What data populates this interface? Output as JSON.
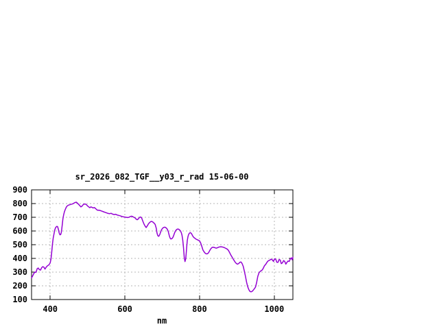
{
  "window": {
    "background": "#ffffff"
  },
  "chart_data": {
    "type": "line",
    "title": "sr_2026_082_TGF__y03_r_rad 15-06-00",
    "xlabel": "nm",
    "ylabel": "",
    "xlim": [
      350,
      1050
    ],
    "ylim": [
      100,
      900
    ],
    "x_ticks": [
      400,
      600,
      800,
      1000
    ],
    "y_ticks": [
      100,
      200,
      300,
      400,
      500,
      600,
      700,
      800,
      900
    ],
    "grid": true,
    "legend_position": "none",
    "colors": {
      "line": "#9400d3",
      "grid": "#b5b5b5",
      "frame": "#000000",
      "text": "#000000",
      "background": "#ffffff"
    },
    "series": [
      {
        "points": [
          [
            350,
            258
          ],
          [
            353,
            272
          ],
          [
            356,
            290
          ],
          [
            359,
            300
          ],
          [
            362,
            298
          ],
          [
            365,
            325
          ],
          [
            368,
            330
          ],
          [
            371,
            318
          ],
          [
            374,
            315
          ],
          [
            377,
            332
          ],
          [
            380,
            340
          ],
          [
            383,
            336
          ],
          [
            386,
            322
          ],
          [
            389,
            335
          ],
          [
            392,
            345
          ],
          [
            395,
            350
          ],
          [
            398,
            358
          ],
          [
            400,
            368
          ],
          [
            402,
            395
          ],
          [
            404,
            445
          ],
          [
            406,
            505
          ],
          [
            408,
            550
          ],
          [
            410,
            578
          ],
          [
            412,
            605
          ],
          [
            414,
            622
          ],
          [
            416,
            630
          ],
          [
            418,
            634
          ],
          [
            420,
            630
          ],
          [
            422,
            610
          ],
          [
            424,
            585
          ],
          [
            426,
            572
          ],
          [
            428,
            574
          ],
          [
            430,
            592
          ],
          [
            432,
            638
          ],
          [
            434,
            688
          ],
          [
            436,
            718
          ],
          [
            438,
            740
          ],
          [
            440,
            755
          ],
          [
            442,
            768
          ],
          [
            444,
            778
          ],
          [
            446,
            784
          ],
          [
            449,
            789
          ],
          [
            452,
            791
          ],
          [
            455,
            794
          ],
          [
            458,
            796
          ],
          [
            461,
            799
          ],
          [
            464,
            804
          ],
          [
            467,
            808
          ],
          [
            470,
            810
          ],
          [
            473,
            803
          ],
          [
            476,
            794
          ],
          [
            479,
            786
          ],
          [
            482,
            776
          ],
          [
            485,
            781
          ],
          [
            488,
            791
          ],
          [
            491,
            796
          ],
          [
            494,
            797
          ],
          [
            497,
            792
          ],
          [
            500,
            783
          ],
          [
            503,
            776
          ],
          [
            506,
            770
          ],
          [
            509,
            776
          ],
          [
            512,
            772
          ],
          [
            515,
            768
          ],
          [
            518,
            771
          ],
          [
            521,
            765
          ],
          [
            524,
            757
          ],
          [
            527,
            751
          ],
          [
            530,
            752
          ],
          [
            533,
            750
          ],
          [
            536,
            747
          ],
          [
            539,
            744
          ],
          [
            543,
            740
          ],
          [
            547,
            736
          ],
          [
            551,
            732
          ],
          [
            555,
            728
          ],
          [
            559,
            726
          ],
          [
            563,
            729
          ],
          [
            567,
            723
          ],
          [
            571,
            720
          ],
          [
            575,
            722
          ],
          [
            579,
            717
          ],
          [
            583,
            714
          ],
          [
            587,
            711
          ],
          [
            591,
            707
          ],
          [
            595,
            704
          ],
          [
            599,
            702
          ],
          [
            603,
            700
          ],
          [
            607,
            698
          ],
          [
            611,
            700
          ],
          [
            615,
            706
          ],
          [
            618,
            708
          ],
          [
            621,
            705
          ],
          [
            624,
            700
          ],
          [
            627,
            696
          ],
          [
            630,
            687
          ],
          [
            633,
            682
          ],
          [
            636,
            688
          ],
          [
            639,
            699
          ],
          [
            642,
            702
          ],
          [
            645,
            694
          ],
          [
            648,
            672
          ],
          [
            651,
            652
          ],
          [
            654,
            636
          ],
          [
            657,
            625
          ],
          [
            660,
            637
          ],
          [
            663,
            652
          ],
          [
            666,
            661
          ],
          [
            669,
            668
          ],
          [
            672,
            670
          ],
          [
            675,
            665
          ],
          [
            678,
            658
          ],
          [
            681,
            648
          ],
          [
            684,
            620
          ],
          [
            686,
            585
          ],
          [
            688,
            567
          ],
          [
            690,
            561
          ],
          [
            692,
            566
          ],
          [
            694,
            578
          ],
          [
            696,
            594
          ],
          [
            698,
            608
          ],
          [
            701,
            620
          ],
          [
            704,
            626
          ],
          [
            707,
            628
          ],
          [
            710,
            624
          ],
          [
            713,
            615
          ],
          [
            716,
            598
          ],
          [
            719,
            566
          ],
          [
            721,
            549
          ],
          [
            723,
            542
          ],
          [
            725,
            543
          ],
          [
            727,
            547
          ],
          [
            729,
            556
          ],
          [
            731,
            570
          ],
          [
            733,
            586
          ],
          [
            735,
            598
          ],
          [
            737,
            606
          ],
          [
            739,
            611
          ],
          [
            741,
            614
          ],
          [
            743,
            614
          ],
          [
            745,
            611
          ],
          [
            747,
            606
          ],
          [
            749,
            600
          ],
          [
            751,
            588
          ],
          [
            753,
            570
          ],
          [
            755,
            535
          ],
          [
            757,
            480
          ],
          [
            759,
            408
          ],
          [
            761,
            377
          ],
          [
            763,
            398
          ],
          [
            765,
            465
          ],
          [
            767,
            530
          ],
          [
            769,
            560
          ],
          [
            771,
            576
          ],
          [
            773,
            584
          ],
          [
            775,
            588
          ],
          [
            777,
            585
          ],
          [
            779,
            578
          ],
          [
            781,
            567
          ],
          [
            783,
            558
          ],
          [
            785,
            552
          ],
          [
            787,
            548
          ],
          [
            789,
            544
          ],
          [
            791,
            540
          ],
          [
            794,
            536
          ],
          [
            797,
            532
          ],
          [
            800,
            528
          ],
          [
            803,
            512
          ],
          [
            806,
            488
          ],
          [
            809,
            462
          ],
          [
            812,
            448
          ],
          [
            815,
            438
          ],
          [
            818,
            433
          ],
          [
            821,
            434
          ],
          [
            824,
            441
          ],
          [
            827,
            456
          ],
          [
            830,
            470
          ],
          [
            833,
            479
          ],
          [
            836,
            482
          ],
          [
            839,
            480
          ],
          [
            842,
            477
          ],
          [
            845,
            475
          ],
          [
            848,
            478
          ],
          [
            851,
            482
          ],
          [
            854,
            484
          ],
          [
            857,
            485
          ],
          [
            860,
            484
          ],
          [
            863,
            482
          ],
          [
            866,
            479
          ],
          [
            869,
            475
          ],
          [
            872,
            471
          ],
          [
            875,
            466
          ],
          [
            878,
            455
          ],
          [
            881,
            440
          ],
          [
            884,
            424
          ],
          [
            887,
            410
          ],
          [
            890,
            396
          ],
          [
            893,
            383
          ],
          [
            896,
            370
          ],
          [
            899,
            362
          ],
          [
            902,
            358
          ],
          [
            905,
            363
          ],
          [
            908,
            372
          ],
          [
            911,
            374
          ],
          [
            914,
            362
          ],
          [
            917,
            342
          ],
          [
            920,
            308
          ],
          [
            923,
            268
          ],
          [
            926,
            226
          ],
          [
            929,
            194
          ],
          [
            932,
            172
          ],
          [
            935,
            159
          ],
          [
            938,
            156
          ],
          [
            941,
            160
          ],
          [
            944,
            169
          ],
          [
            947,
            179
          ],
          [
            950,
            192
          ],
          [
            953,
            226
          ],
          [
            956,
            268
          ],
          [
            959,
            294
          ],
          [
            962,
            304
          ],
          [
            965,
            310
          ],
          [
            968,
            316
          ],
          [
            971,
            330
          ],
          [
            974,
            347
          ],
          [
            977,
            356
          ],
          [
            980,
            369
          ],
          [
            983,
            380
          ],
          [
            986,
            385
          ],
          [
            989,
            389
          ],
          [
            992,
            395
          ],
          [
            995,
            389
          ],
          [
            998,
            378
          ],
          [
            1001,
            397
          ],
          [
            1004,
            394
          ],
          [
            1007,
            372
          ],
          [
            1010,
            371
          ],
          [
            1013,
            392
          ],
          [
            1016,
            388
          ],
          [
            1019,
            362
          ],
          [
            1022,
            368
          ],
          [
            1025,
            384
          ],
          [
            1028,
            379
          ],
          [
            1031,
            358
          ],
          [
            1034,
            371
          ],
          [
            1037,
            381
          ],
          [
            1040,
            378
          ],
          [
            1043,
            396
          ],
          [
            1046,
            404
          ],
          [
            1048,
            390
          ],
          [
            1050,
            408
          ]
        ]
      }
    ]
  }
}
